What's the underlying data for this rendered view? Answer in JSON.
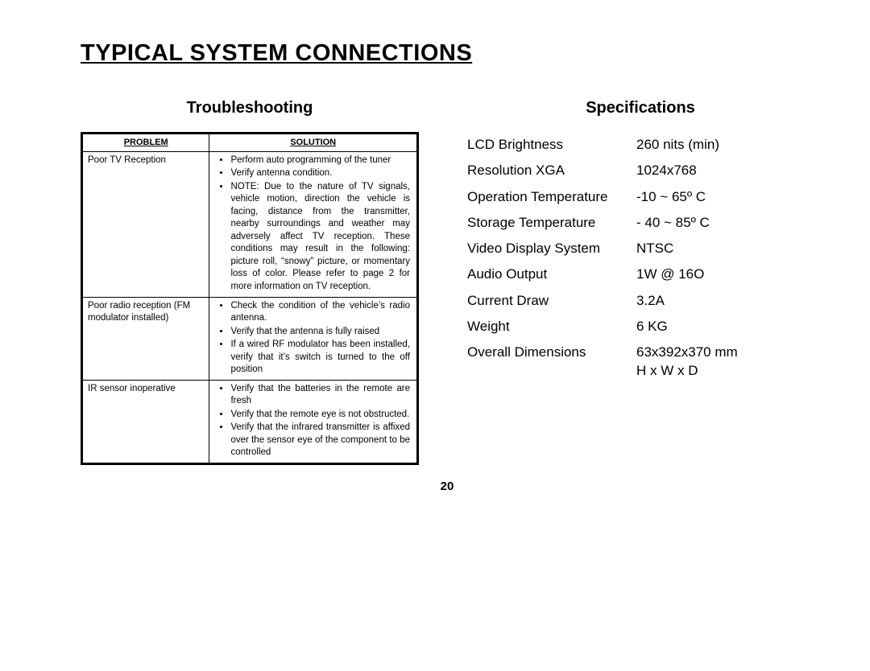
{
  "title": "TYPICAL SYSTEM CONNECTIONS",
  "troubleshooting": {
    "heading": "Troubleshooting",
    "col_problem": "PROBLEM",
    "col_solution": "SOLUTION",
    "rows": [
      {
        "problem": "Poor TV Reception",
        "solutions": [
          "Perform auto programming of the tuner",
          "Verify antenna condition.",
          "NOTE: Due to the nature of TV signals, vehicle motion, direction the vehicle is facing, distance from the transmitter, nearby surroundings and weather may adversely affect TV reception. These conditions may result in the following: picture roll, “snowy” picture, or momentary loss of color.  Please refer to page 2 for more information on TV reception."
        ]
      },
      {
        "problem": "Poor radio reception (FM modulator installed)",
        "solutions": [
          "Check the condition of the vehicle’s radio antenna.",
          "Verify that the antenna is fully raised",
          "If a wired RF modulator has been installed, verify that it’s switch is turned to the off position"
        ]
      },
      {
        "problem": "IR sensor inoperative",
        "solutions": [
          "Verify that the batteries in the remote are fresh",
          "Verify that the remote eye is not obstructed.",
          "Verify that the infrared transmitter is affixed over the sensor eye of the component to be controlled"
        ]
      }
    ]
  },
  "specifications": {
    "heading": "Specifications",
    "rows": [
      {
        "label": "LCD Brightness",
        "value": "260 nits (min)"
      },
      {
        "label": "Resolution XGA",
        "value": " 1024x768"
      },
      {
        "label": "Operation Temperature",
        "value": "-10 ~ 65º C"
      },
      {
        "label": "Storage Temperature",
        "value": "- 40 ~ 85º C"
      },
      {
        "label": "Video Display System",
        "value": " NTSC"
      },
      {
        "label": "Audio Output",
        "value": "1W @ 16O"
      },
      {
        "label": "Current Draw",
        "value": "3.2A"
      },
      {
        "label": "Weight",
        "value": " 6 KG"
      },
      {
        "label": "Overall Dimensions",
        "value": " 63x392x370 mm"
      }
    ],
    "dims_note": "H x W x D"
  },
  "page_number": "20"
}
